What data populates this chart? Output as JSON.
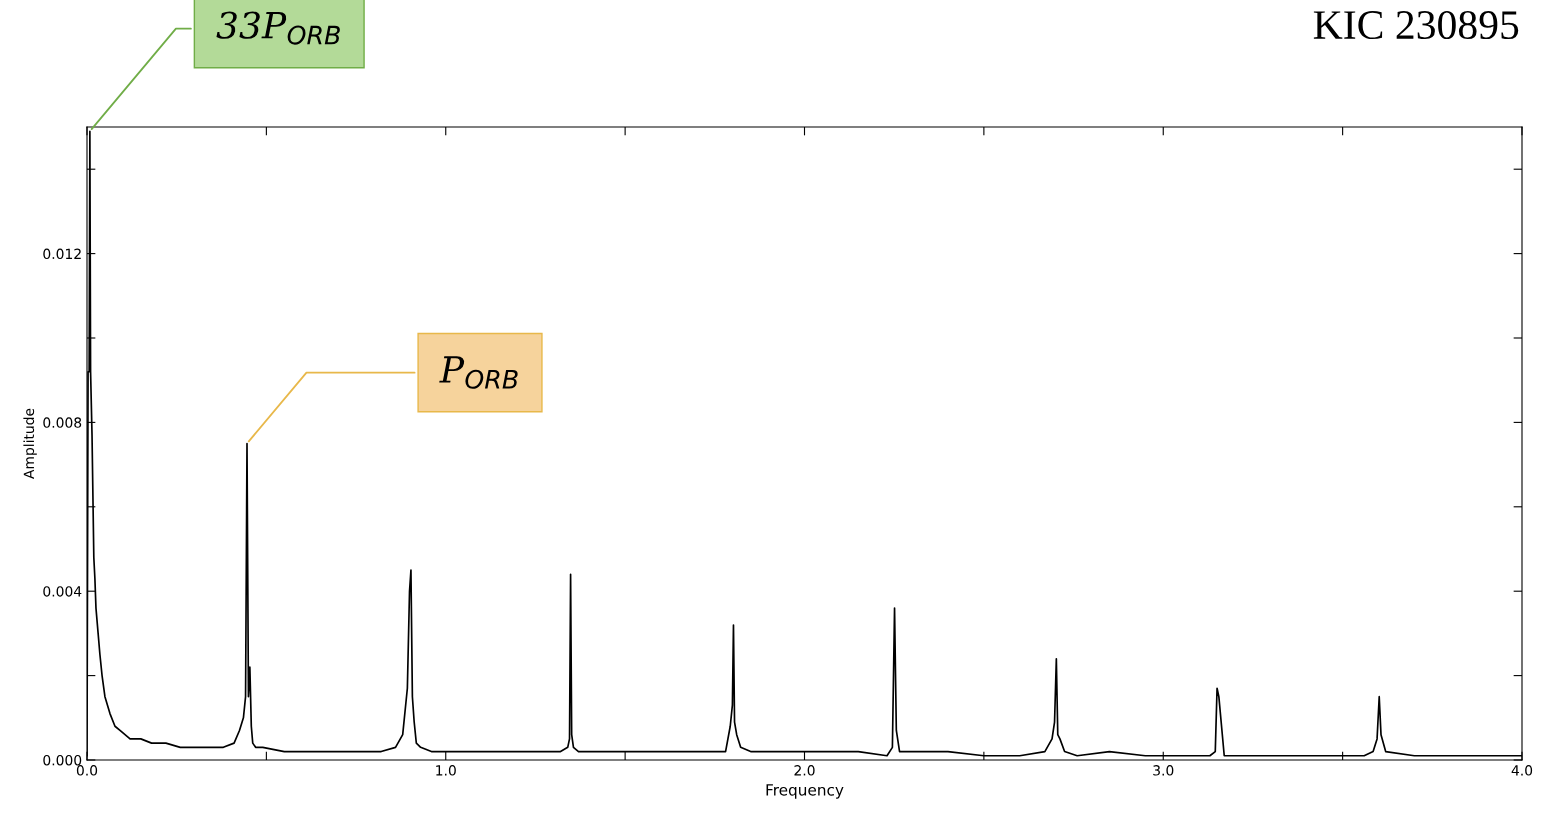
{
  "chart_data": {
    "type": "line",
    "title": "KIC 230895",
    "xlabel": "Frequency",
    "ylabel": "Amplitude",
    "xlim": [
      0,
      4
    ],
    "ylim": [
      0,
      0.015
    ],
    "xticks": [
      {
        "value": 0,
        "label": "0.0"
      },
      {
        "value": 0.5,
        "label": null
      },
      {
        "value": 1,
        "label": "1.0"
      },
      {
        "value": 1.5,
        "label": null
      },
      {
        "value": 2,
        "label": "2.0"
      },
      {
        "value": 2.5,
        "label": null
      },
      {
        "value": 3,
        "label": "3.0"
      },
      {
        "value": 3.5,
        "label": null
      },
      {
        "value": 4,
        "label": "4.0"
      }
    ],
    "yticks": [
      {
        "value": 0,
        "label": "0.000"
      },
      {
        "value": 0.002,
        "label": null
      },
      {
        "value": 0.004,
        "label": "0.004"
      },
      {
        "value": 0.006,
        "label": null
      },
      {
        "value": 0.008,
        "label": "0.008"
      },
      {
        "value": 0.01,
        "label": null
      },
      {
        "value": 0.012,
        "label": "0.012"
      },
      {
        "value": 0.014,
        "label": null
      }
    ],
    "grid": false,
    "marker": "none",
    "line_style": "solid",
    "annotations": [
      {
        "text": "33P$_{ORB}$",
        "x": 0.008,
        "y": 0.0149
      },
      {
        "text": "P$_{ORB}$",
        "x": 0.446,
        "y": 0.0075
      }
    ],
    "series": [
      {
        "color": "#000000",
        "x": [
          0.0,
          0.003,
          0.006,
          0.008,
          0.01,
          0.014,
          0.019,
          0.022,
          0.025,
          0.031,
          0.036,
          0.042,
          0.05,
          0.064,
          0.078,
          0.092,
          0.12,
          0.15,
          0.18,
          0.22,
          0.26,
          0.3,
          0.34,
          0.38,
          0.41,
          0.425,
          0.436,
          0.442,
          0.446,
          0.45,
          0.454,
          0.458,
          0.462,
          0.47,
          0.49,
          0.55,
          0.65,
          0.75,
          0.82,
          0.86,
          0.88,
          0.893,
          0.899,
          0.903,
          0.907,
          0.912,
          0.918,
          0.93,
          0.96,
          1.05,
          1.15,
          1.25,
          1.32,
          1.34,
          1.345,
          1.348,
          1.351,
          1.356,
          1.37,
          1.45,
          1.55,
          1.65,
          1.75,
          1.78,
          1.793,
          1.799,
          1.802,
          1.805,
          1.811,
          1.822,
          1.85,
          1.95,
          2.05,
          2.15,
          2.23,
          2.245,
          2.251,
          2.256,
          2.265,
          2.3,
          2.4,
          2.5,
          2.6,
          2.67,
          2.69,
          2.697,
          2.702,
          2.706,
          2.712,
          2.725,
          2.76,
          2.85,
          2.95,
          3.05,
          3.13,
          3.145,
          3.15,
          3.155,
          3.17,
          3.25,
          3.35,
          3.45,
          3.56,
          3.585,
          3.596,
          3.602,
          3.607,
          3.62,
          3.7,
          3.8,
          3.9,
          4.0
        ],
        "values": [
          0.0001,
          0.0092,
          0.0092,
          0.0149,
          0.0092,
          0.0077,
          0.0048,
          0.0043,
          0.0036,
          0.003,
          0.0025,
          0.002,
          0.0015,
          0.0011,
          0.0008,
          0.0007,
          0.0005,
          0.0005,
          0.0004,
          0.0004,
          0.0003,
          0.0003,
          0.0003,
          0.0003,
          0.0004,
          0.0007,
          0.001,
          0.0015,
          0.0075,
          0.0015,
          0.0022,
          0.0008,
          0.0004,
          0.0003,
          0.0003,
          0.0002,
          0.0002,
          0.0002,
          0.0002,
          0.0003,
          0.0006,
          0.0017,
          0.004,
          0.0045,
          0.0015,
          0.0009,
          0.0004,
          0.0003,
          0.0002,
          0.0002,
          0.0002,
          0.0002,
          0.0002,
          0.0003,
          0.0005,
          0.0044,
          0.0006,
          0.0003,
          0.0002,
          0.0002,
          0.0002,
          0.0002,
          0.0002,
          0.0002,
          0.0008,
          0.0013,
          0.0032,
          0.0009,
          0.0006,
          0.0003,
          0.0002,
          0.0002,
          0.0002,
          0.0002,
          0.0001,
          0.0003,
          0.0036,
          0.0007,
          0.0002,
          0.0002,
          0.0002,
          0.0001,
          0.0001,
          0.0002,
          0.0005,
          0.0009,
          0.0024,
          0.0006,
          0.0005,
          0.0002,
          0.0001,
          0.0002,
          0.0001,
          0.0001,
          0.0001,
          0.0002,
          0.0017,
          0.0015,
          0.0001,
          0.0001,
          0.0001,
          0.0001,
          0.0001,
          0.0002,
          0.0005,
          0.0015,
          0.0006,
          0.0002,
          0.0001,
          0.0001,
          0.0001,
          0.0001
        ]
      }
    ]
  }
}
